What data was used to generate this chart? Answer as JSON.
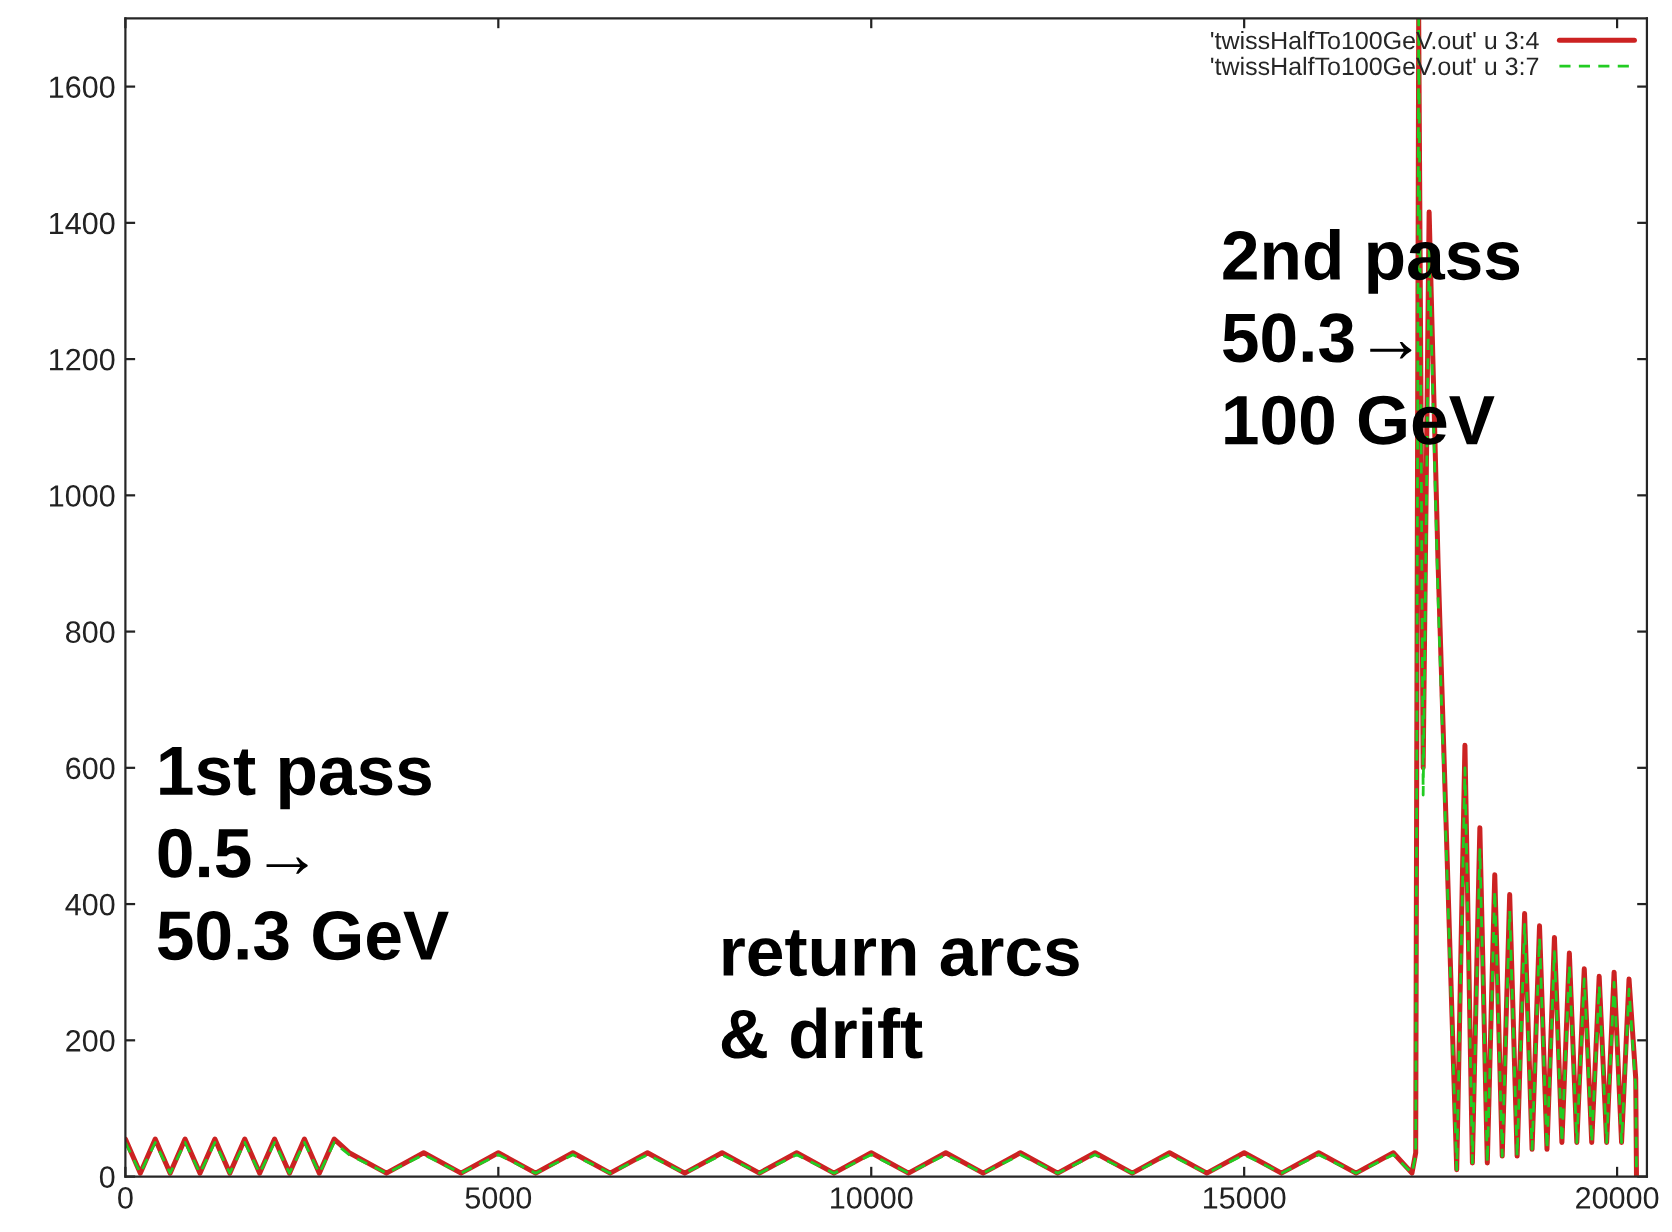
{
  "chart_data": {
    "type": "line",
    "xlim": [
      0,
      20400
    ],
    "ylim": [
      0,
      1700
    ],
    "xticks": [
      0,
      5000,
      10000,
      15000,
      20000
    ],
    "yticks": [
      0,
      200,
      400,
      600,
      800,
      1000,
      1200,
      1400,
      1600
    ],
    "grid": false,
    "legend": "top right",
    "marker": "none",
    "annotations": [
      "1st pass\n0.5→\n50.3 GeV",
      "return arcs\n& drift",
      "2nd pass\n50.3→\n100 GeV"
    ],
    "series": [
      {
        "name": "'twissHalfTo100GeV.out' u 3:4",
        "color": "#cc2222",
        "line_style": "solid",
        "x": [
          0,
          200,
          400,
          600,
          800,
          1000,
          1200,
          1400,
          1600,
          1800,
          2000,
          2200,
          2400,
          2600,
          2800,
          3000,
          3500,
          4000,
          4500,
          5000,
          5500,
          6000,
          6500,
          7000,
          7500,
          8000,
          8500,
          9000,
          9500,
          10000,
          10500,
          11000,
          11500,
          12000,
          12500,
          13000,
          13500,
          14000,
          14500,
          15000,
          15500,
          16000,
          16500,
          17000,
          17250,
          17300,
          17340,
          17400,
          17480,
          17600,
          17850,
          17960,
          18060,
          18160,
          18260,
          18360,
          18460,
          18560,
          18660,
          18760,
          18860,
          18960,
          19060,
          19160,
          19260,
          19360,
          19460,
          19560,
          19660,
          19760,
          19860,
          19960,
          20060,
          20160,
          20250,
          20260
        ],
        "values": [
          55,
          5,
          55,
          5,
          55,
          5,
          55,
          5,
          55,
          5,
          55,
          5,
          55,
          5,
          55,
          35,
          5,
          35,
          5,
          35,
          5,
          35,
          5,
          35,
          5,
          35,
          5,
          35,
          5,
          35,
          5,
          35,
          5,
          35,
          5,
          35,
          5,
          35,
          5,
          35,
          5,
          35,
          5,
          35,
          5,
          35,
          1700,
          600,
          1416,
          900,
          10,
          633,
          20,
          512,
          20,
          443,
          30,
          414,
          30,
          386,
          40,
          368,
          40,
          351,
          50,
          328,
          50,
          305,
          50,
          294,
          50,
          300,
          50,
          290,
          144,
          0
        ]
      },
      {
        "name": "'twissHalfTo100GeV.out' u 3:7",
        "color": "#22cc22",
        "line_style": "dashed",
        "x": [
          0,
          200,
          400,
          600,
          800,
          1000,
          1200,
          1400,
          1600,
          1800,
          2000,
          2200,
          2400,
          2600,
          2800,
          3000,
          3500,
          4000,
          4500,
          5000,
          5500,
          6000,
          6500,
          7000,
          7500,
          8000,
          8500,
          9000,
          9500,
          10000,
          10500,
          11000,
          11500,
          12000,
          12500,
          13000,
          13500,
          14000,
          14500,
          15000,
          15500,
          16000,
          16500,
          17000,
          17250,
          17300,
          17340,
          17400,
          17480,
          17600,
          17850,
          17960,
          18060,
          18160,
          18260,
          18360,
          18460,
          18560,
          18660,
          18760,
          18860,
          18960,
          19060,
          19160,
          19260,
          19360,
          19460,
          19560,
          19660,
          19760,
          19860,
          19960,
          20060,
          20160,
          20250,
          20260
        ],
        "values": [
          50,
          5,
          50,
          5,
          50,
          5,
          50,
          5,
          50,
          5,
          50,
          5,
          50,
          5,
          50,
          32,
          5,
          32,
          5,
          32,
          5,
          32,
          5,
          32,
          5,
          32,
          5,
          32,
          5,
          32,
          5,
          32,
          5,
          32,
          5,
          32,
          5,
          32,
          5,
          32,
          5,
          32,
          5,
          32,
          5,
          32,
          1700,
          560,
          1360,
          850,
          10,
          600,
          20,
          480,
          20,
          420,
          30,
          390,
          30,
          370,
          40,
          350,
          40,
          330,
          50,
          310,
          50,
          290,
          50,
          280,
          50,
          285,
          50,
          275,
          130,
          0
        ]
      }
    ]
  }
}
